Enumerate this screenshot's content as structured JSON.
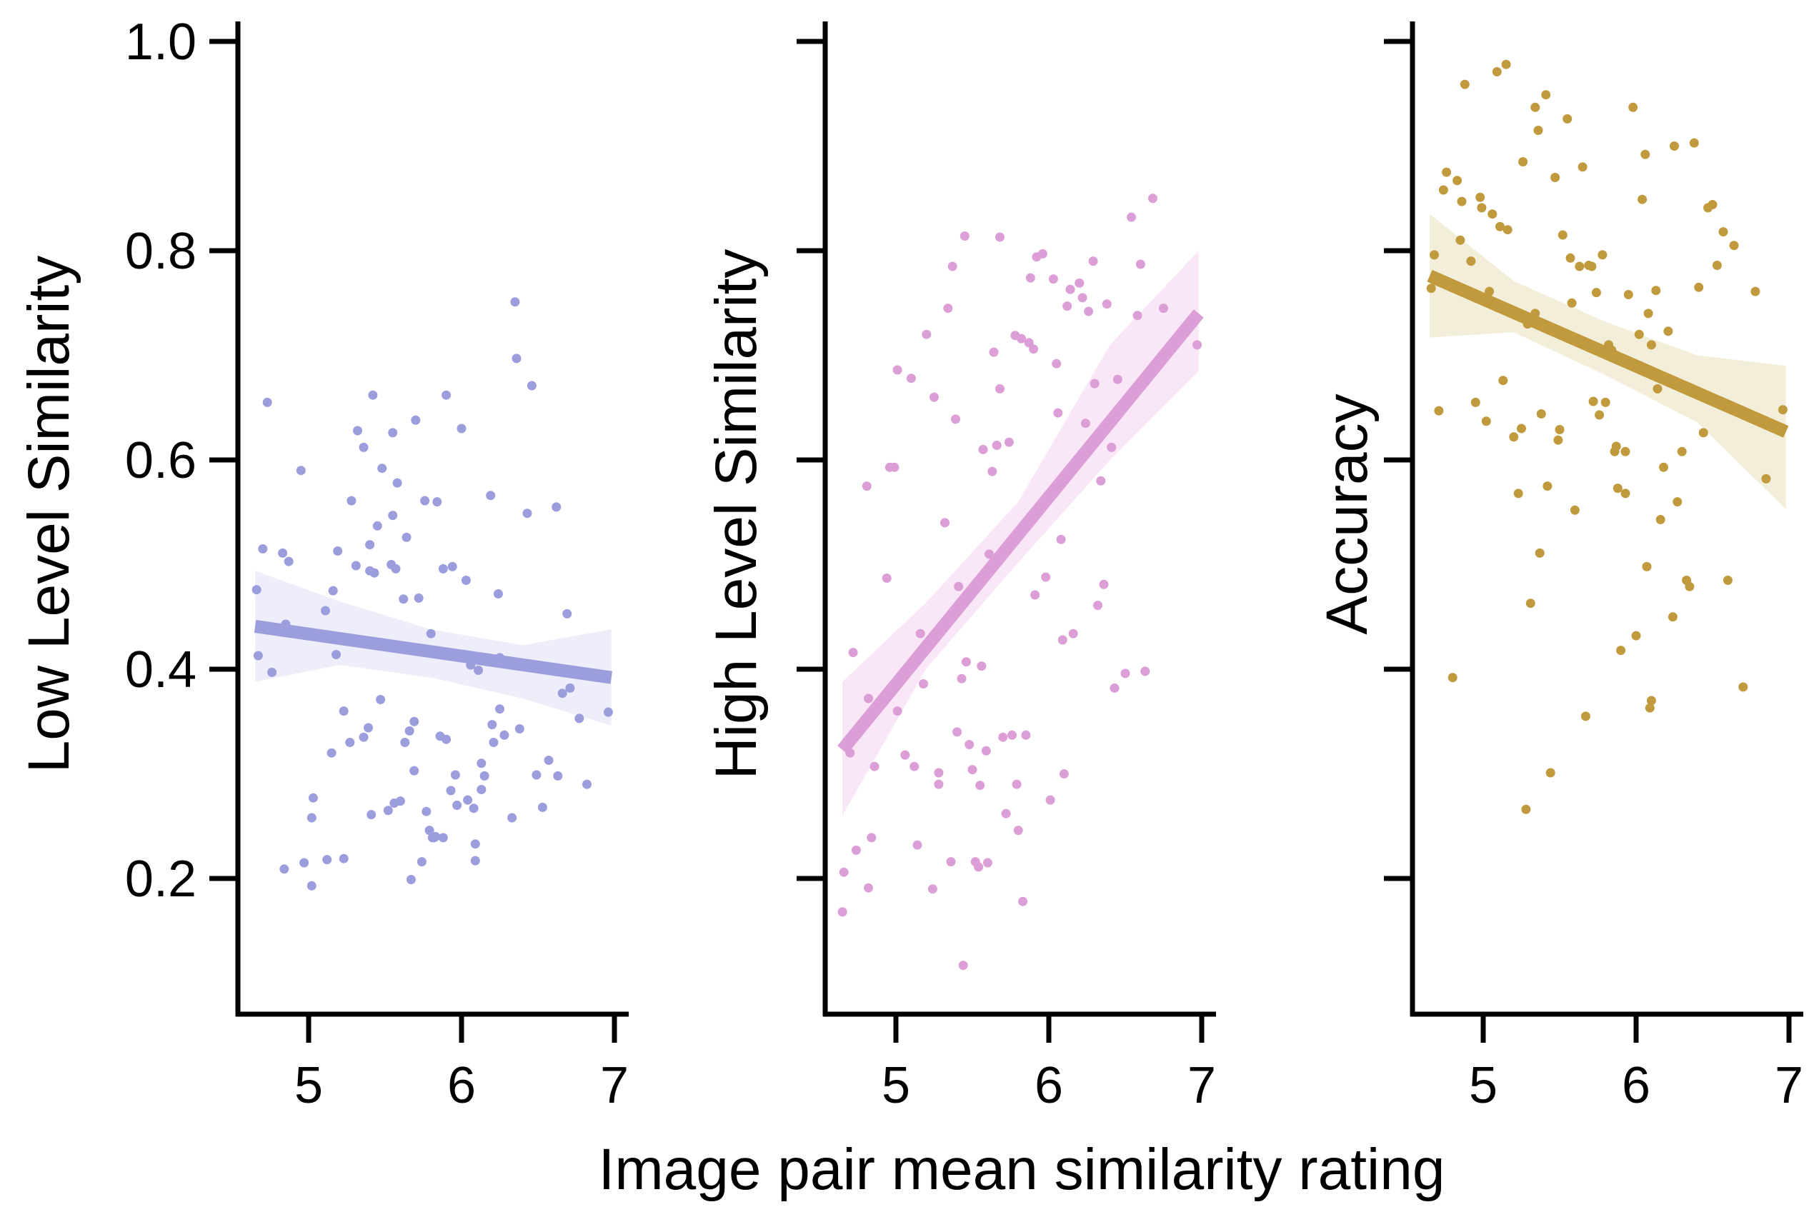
{
  "figure": {
    "shared_xlabel": "Image pair mean similarity rating"
  },
  "chart_data": [
    {
      "type": "scatter",
      "ylabel": "Low Level Similarity",
      "xlabel": "",
      "xlim": [
        4.55,
        7.1
      ],
      "ylim": [
        0.07,
        1.02
      ],
      "xticks": [
        5,
        6,
        7
      ],
      "xtick_labels": [
        "5",
        "6",
        "7"
      ],
      "yticks": [
        0.2,
        0.4,
        0.6,
        0.8,
        1.0
      ],
      "ytick_labels": [
        "0.2",
        "0.4",
        "0.6",
        "0.8",
        "1.0"
      ],
      "show_ytick_labels": true,
      "grid": false,
      "color": "#9b9ddc",
      "band_color": "#eeeefa",
      "regression": {
        "x": [
          4.65,
          6.98
        ],
        "y": [
          0.441,
          0.392
        ]
      },
      "ci_band": {
        "x": [
          4.65,
          5.2,
          5.8,
          6.4,
          6.98
        ],
        "lower": [
          0.388,
          0.404,
          0.392,
          0.372,
          0.346
        ],
        "upper": [
          0.494,
          0.465,
          0.438,
          0.423,
          0.438
        ]
      },
      "points": [
        [
          4.66,
          0.476
        ],
        [
          4.67,
          0.413
        ],
        [
          4.7,
          0.515
        ],
        [
          4.73,
          0.655
        ],
        [
          4.76,
          0.397
        ],
        [
          4.83,
          0.511
        ],
        [
          4.84,
          0.209
        ],
        [
          4.85,
          0.443
        ],
        [
          4.87,
          0.503
        ],
        [
          4.95,
          0.59
        ],
        [
          4.97,
          0.215
        ],
        [
          5.02,
          0.258
        ],
        [
          5.03,
          0.277
        ],
        [
          5.02,
          0.193
        ],
        [
          5.11,
          0.456
        ],
        [
          5.12,
          0.218
        ],
        [
          5.15,
          0.32
        ],
        [
          5.16,
          0.475
        ],
        [
          5.18,
          0.414
        ],
        [
          5.19,
          0.513
        ],
        [
          5.23,
          0.219
        ],
        [
          5.27,
          0.33
        ],
        [
          5.28,
          0.561
        ],
        [
          5.32,
          0.628
        ],
        [
          5.31,
          0.499
        ],
        [
          5.36,
          0.612
        ],
        [
          5.36,
          0.335
        ],
        [
          5.39,
          0.344
        ],
        [
          5.4,
          0.519
        ],
        [
          5.42,
          0.662
        ],
        [
          5.41,
          0.261
        ],
        [
          5.43,
          0.492
        ],
        [
          5.45,
          0.537
        ],
        [
          5.47,
          0.371
        ],
        [
          5.48,
          0.592
        ],
        [
          5.52,
          0.265
        ],
        [
          5.55,
          0.626
        ],
        [
          5.55,
          0.547
        ],
        [
          5.54,
          0.5
        ],
        [
          5.56,
          0.272
        ],
        [
          5.57,
          0.496
        ],
        [
          5.58,
          0.578
        ],
        [
          5.6,
          0.274
        ],
        [
          5.62,
          0.467
        ],
        [
          5.63,
          0.33
        ],
        [
          5.64,
          0.526
        ],
        [
          5.66,
          0.341
        ],
        [
          5.67,
          0.199
        ],
        [
          5.7,
          0.638
        ],
        [
          5.69,
          0.303
        ],
        [
          5.72,
          0.468
        ],
        [
          5.74,
          0.216
        ],
        [
          5.76,
          0.561
        ],
        [
          5.77,
          0.264
        ],
        [
          5.79,
          0.246
        ],
        [
          5.8,
          0.434
        ],
        [
          5.82,
          0.239
        ],
        [
          5.84,
          0.56
        ],
        [
          5.86,
          0.336
        ],
        [
          5.88,
          0.496
        ],
        [
          5.88,
          0.239
        ],
        [
          5.9,
          0.662
        ],
        [
          5.93,
          0.284
        ],
        [
          5.94,
          0.498
        ],
        [
          5.96,
          0.299
        ],
        [
          6.0,
          0.63
        ],
        [
          6.03,
          0.485
        ],
        [
          6.04,
          0.275
        ],
        [
          6.06,
          0.404
        ],
        [
          6.08,
          0.267
        ],
        [
          6.09,
          0.233
        ],
        [
          6.11,
          0.399
        ],
        [
          6.13,
          0.285
        ],
        [
          6.15,
          0.298
        ],
        [
          6.17,
          0.41
        ],
        [
          6.19,
          0.566
        ],
        [
          6.2,
          0.347
        ],
        [
          6.24,
          0.472
        ],
        [
          6.25,
          0.411
        ],
        [
          6.25,
          0.362
        ],
        [
          6.28,
          0.337
        ],
        [
          6.33,
          0.258
        ],
        [
          6.35,
          0.751
        ],
        [
          6.36,
          0.697
        ],
        [
          6.38,
          0.343
        ],
        [
          6.43,
          0.549
        ],
        [
          6.46,
          0.671
        ],
        [
          6.49,
          0.299
        ],
        [
          6.53,
          0.268
        ],
        [
          6.57,
          0.313
        ],
        [
          6.62,
          0.555
        ],
        [
          6.63,
          0.298
        ],
        [
          6.66,
          0.377
        ],
        [
          6.69,
          0.453
        ],
        [
          6.71,
          0.382
        ],
        [
          6.77,
          0.353
        ],
        [
          6.82,
          0.29
        ],
        [
          6.96,
          0.359
        ],
        [
          5.83,
          0.24
        ],
        [
          6.09,
          0.217
        ],
        [
          5.81,
          0.239
        ],
        [
          5.9,
          0.333
        ],
        [
          5.69,
          0.35
        ],
        [
          5.4,
          0.494
        ],
        [
          5.23,
          0.36
        ],
        [
          6.13,
          0.31
        ],
        [
          6.21,
          0.33
        ],
        [
          5.97,
          0.27
        ]
      ]
    },
    {
      "type": "scatter",
      "ylabel": "High Level Similarity",
      "xlabel": "",
      "xlim": [
        4.55,
        7.1
      ],
      "ylim": [
        0.07,
        1.02
      ],
      "xticks": [
        5,
        6,
        7
      ],
      "xtick_labels": [
        "5",
        "6",
        "7"
      ],
      "yticks": [
        0.2,
        0.4,
        0.6,
        0.8,
        1.0
      ],
      "ytick_labels": [
        "",
        "",
        "",
        "",
        ""
      ],
      "show_ytick_labels": false,
      "grid": false,
      "color": "#dc9ed6",
      "band_color": "#f9e6f6",
      "regression": {
        "x": [
          4.65,
          6.98
        ],
        "y": [
          0.323,
          0.74
        ]
      },
      "ci_band": {
        "x": [
          4.65,
          5.2,
          5.8,
          6.4,
          6.98
        ],
        "lower": [
          0.26,
          0.401,
          0.502,
          0.6,
          0.685
        ],
        "upper": [
          0.388,
          0.464,
          0.56,
          0.71,
          0.8
        ]
      },
      "points": [
        [
          4.65,
          0.168
        ],
        [
          4.66,
          0.206
        ],
        [
          4.7,
          0.32
        ],
        [
          4.72,
          0.416
        ],
        [
          4.74,
          0.227
        ],
        [
          4.81,
          0.575
        ],
        [
          4.82,
          0.191
        ],
        [
          4.82,
          0.372
        ],
        [
          4.84,
          0.239
        ],
        [
          4.86,
          0.307
        ],
        [
          4.94,
          0.487
        ],
        [
          4.96,
          0.593
        ],
        [
          4.99,
          0.593
        ],
        [
          5.01,
          0.686
        ],
        [
          5.01,
          0.36
        ],
        [
          5.06,
          0.318
        ],
        [
          5.1,
          0.678
        ],
        [
          5.12,
          0.307
        ],
        [
          5.14,
          0.232
        ],
        [
          5.16,
          0.434
        ],
        [
          5.18,
          0.386
        ],
        [
          5.2,
          0.72
        ],
        [
          5.24,
          0.19
        ],
        [
          5.25,
          0.66
        ],
        [
          5.28,
          0.301
        ],
        [
          5.28,
          0.29
        ],
        [
          5.32,
          0.54
        ],
        [
          5.34,
          0.745
        ],
        [
          5.36,
          0.216
        ],
        [
          5.37,
          0.785
        ],
        [
          5.39,
          0.639
        ],
        [
          5.4,
          0.34
        ],
        [
          5.41,
          0.479
        ],
        [
          5.43,
          0.391
        ],
        [
          5.44,
          0.117
        ],
        [
          5.45,
          0.814
        ],
        [
          5.48,
          0.328
        ],
        [
          5.5,
          0.304
        ],
        [
          5.52,
          0.216
        ],
        [
          5.54,
          0.211
        ],
        [
          5.55,
          0.289
        ],
        [
          5.56,
          0.403
        ],
        [
          5.57,
          0.61
        ],
        [
          5.59,
          0.322
        ],
        [
          5.6,
          0.215
        ],
        [
          5.61,
          0.51
        ],
        [
          5.63,
          0.589
        ],
        [
          5.64,
          0.703
        ],
        [
          5.66,
          0.614
        ],
        [
          5.68,
          0.813
        ],
        [
          5.68,
          0.668
        ],
        [
          5.7,
          0.335
        ],
        [
          5.72,
          0.262
        ],
        [
          5.74,
          0.617
        ],
        [
          5.76,
          0.337
        ],
        [
          5.78,
          0.719
        ],
        [
          5.8,
          0.246
        ],
        [
          5.82,
          0.716
        ],
        [
          5.83,
          0.178
        ],
        [
          5.85,
          0.337
        ],
        [
          5.87,
          0.712
        ],
        [
          5.88,
          0.774
        ],
        [
          5.9,
          0.706
        ],
        [
          5.91,
          0.471
        ],
        [
          5.92,
          0.794
        ],
        [
          5.96,
          0.797
        ],
        [
          5.98,
          0.488
        ],
        [
          6.01,
          0.275
        ],
        [
          6.03,
          0.773
        ],
        [
          6.05,
          0.692
        ],
        [
          6.06,
          0.645
        ],
        [
          6.08,
          0.524
        ],
        [
          6.09,
          0.428
        ],
        [
          6.1,
          0.3
        ],
        [
          6.12,
          0.747
        ],
        [
          6.14,
          0.763
        ],
        [
          6.16,
          0.434
        ],
        [
          6.2,
          0.769
        ],
        [
          6.22,
          0.755
        ],
        [
          6.24,
          0.635
        ],
        [
          6.26,
          0.742
        ],
        [
          6.29,
          0.79
        ],
        [
          6.3,
          0.673
        ],
        [
          6.32,
          0.461
        ],
        [
          6.34,
          0.58
        ],
        [
          6.36,
          0.481
        ],
        [
          6.38,
          0.749
        ],
        [
          6.41,
          0.612
        ],
        [
          6.43,
          0.382
        ],
        [
          6.45,
          0.677
        ],
        [
          6.5,
          0.396
        ],
        [
          6.54,
          0.832
        ],
        [
          6.58,
          0.738
        ],
        [
          6.6,
          0.787
        ],
        [
          6.63,
          0.398
        ],
        [
          6.68,
          0.85
        ],
        [
          6.75,
          0.745
        ],
        [
          6.97,
          0.71
        ],
        [
          5.46,
          0.407
        ],
        [
          5.79,
          0.29
        ]
      ]
    },
    {
      "type": "scatter",
      "ylabel": "Accuracy",
      "xlabel": "",
      "xlim": [
        4.55,
        7.1
      ],
      "ylim": [
        0.07,
        1.02
      ],
      "xticks": [
        5,
        6,
        7
      ],
      "xtick_labels": [
        "5",
        "6",
        "7"
      ],
      "yticks": [
        0.2,
        0.4,
        0.6,
        0.8,
        1.0
      ],
      "ytick_labels": [
        "",
        "",
        "",
        "",
        ""
      ],
      "show_ytick_labels": false,
      "grid": false,
      "color": "#c09a3c",
      "band_color": "#f3eed9",
      "regression": {
        "x": [
          4.65,
          6.98
        ],
        "y": [
          0.776,
          0.627
        ]
      },
      "ci_band": {
        "x": [
          4.65,
          5.2,
          5.8,
          6.4,
          6.98
        ],
        "lower": [
          0.717,
          0.722,
          0.681,
          0.636,
          0.553
        ],
        "upper": [
          0.835,
          0.771,
          0.732,
          0.7,
          0.69
        ]
      },
      "points": [
        [
          4.66,
          0.764
        ],
        [
          4.68,
          0.796
        ],
        [
          4.71,
          0.647
        ],
        [
          4.74,
          0.858
        ],
        [
          4.76,
          0.875
        ],
        [
          4.8,
          0.392
        ],
        [
          4.83,
          0.867
        ],
        [
          4.85,
          0.81
        ],
        [
          4.86,
          0.847
        ],
        [
          4.88,
          0.959
        ],
        [
          4.92,
          0.79
        ],
        [
          4.95,
          0.655
        ],
        [
          4.98,
          0.851
        ],
        [
          4.99,
          0.841
        ],
        [
          5.02,
          0.637
        ],
        [
          5.04,
          0.761
        ],
        [
          5.06,
          0.835
        ],
        [
          5.09,
          0.971
        ],
        [
          5.11,
          0.823
        ],
        [
          5.13,
          0.676
        ],
        [
          5.15,
          0.978
        ],
        [
          5.16,
          0.82
        ],
        [
          5.2,
          0.622
        ],
        [
          5.23,
          0.568
        ],
        [
          5.26,
          0.885
        ],
        [
          5.28,
          0.266
        ],
        [
          5.29,
          0.73
        ],
        [
          5.31,
          0.463
        ],
        [
          5.34,
          0.937
        ],
        [
          5.36,
          0.915
        ],
        [
          5.37,
          0.511
        ],
        [
          5.38,
          0.644
        ],
        [
          5.41,
          0.949
        ],
        [
          5.42,
          0.575
        ],
        [
          5.44,
          0.301
        ],
        [
          5.47,
          0.87
        ],
        [
          5.49,
          0.619
        ],
        [
          5.5,
          0.629
        ],
        [
          5.52,
          0.815
        ],
        [
          5.55,
          0.926
        ],
        [
          5.57,
          0.793
        ],
        [
          5.58,
          0.75
        ],
        [
          5.6,
          0.552
        ],
        [
          5.63,
          0.785
        ],
        [
          5.65,
          0.88
        ],
        [
          5.67,
          0.355
        ],
        [
          5.69,
          0.786
        ],
        [
          5.71,
          0.785
        ],
        [
          5.72,
          0.656
        ],
        [
          5.74,
          0.76
        ],
        [
          5.76,
          0.643
        ],
        [
          5.78,
          0.796
        ],
        [
          5.8,
          0.655
        ],
        [
          5.82,
          0.71
        ],
        [
          5.84,
          0.705
        ],
        [
          5.86,
          0.608
        ],
        [
          5.88,
          0.573
        ],
        [
          5.9,
          0.418
        ],
        [
          5.93,
          0.568
        ],
        [
          5.95,
          0.758
        ],
        [
          5.98,
          0.937
        ],
        [
          6.0,
          0.432
        ],
        [
          6.02,
          0.72
        ],
        [
          6.04,
          0.849
        ],
        [
          6.06,
          0.892
        ],
        [
          6.07,
          0.498
        ],
        [
          6.09,
          0.363
        ],
        [
          6.1,
          0.37
        ],
        [
          6.13,
          0.762
        ],
        [
          6.14,
          0.668
        ],
        [
          6.16,
          0.543
        ],
        [
          6.18,
          0.593
        ],
        [
          6.21,
          0.723
        ],
        [
          6.24,
          0.45
        ],
        [
          6.25,
          0.9
        ],
        [
          6.27,
          0.56
        ],
        [
          6.3,
          0.608
        ],
        [
          6.33,
          0.485
        ],
        [
          6.35,
          0.479
        ],
        [
          6.38,
          0.903
        ],
        [
          6.41,
          0.765
        ],
        [
          6.44,
          0.626
        ],
        [
          6.47,
          0.841
        ],
        [
          6.5,
          0.844
        ],
        [
          6.53,
          0.786
        ],
        [
          6.57,
          0.818
        ],
        [
          6.6,
          0.485
        ],
        [
          6.64,
          0.805
        ],
        [
          6.7,
          0.383
        ],
        [
          6.78,
          0.761
        ],
        [
          6.85,
          0.582
        ],
        [
          6.96,
          0.648
        ],
        [
          5.87,
          0.613
        ],
        [
          5.93,
          0.608
        ],
        [
          6.08,
          0.74
        ],
        [
          5.25,
          0.63
        ],
        [
          6.1,
          0.71
        ],
        [
          5.34,
          0.74
        ]
      ]
    }
  ]
}
